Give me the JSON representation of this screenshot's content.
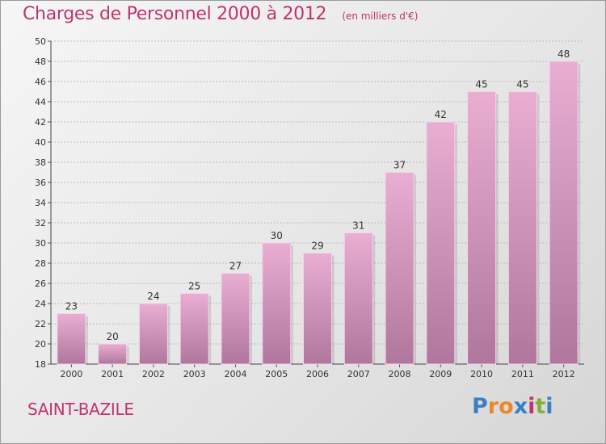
{
  "header": {
    "title": "Charges de Personnel 2000 à 2012",
    "subtitle": "(en milliers d'€)"
  },
  "footer": {
    "commune": "SAINT-BAZILE",
    "logo_text": "Proxiti"
  },
  "colors": {
    "title": "#c0346e",
    "bar_top": "#e9aed2",
    "bar_bottom": "#b0779d",
    "logo_letters": [
      "#3a7fc4",
      "#e8892a",
      "#e8892a",
      "#3a7fc4",
      "#c0346e",
      "#7fb13a",
      "#3a7fc4"
    ]
  },
  "chart_data": {
    "type": "bar",
    "categories": [
      "2000",
      "2001",
      "2002",
      "2003",
      "2004",
      "2005",
      "2006",
      "2007",
      "2008",
      "2009",
      "2010",
      "2011",
      "2012"
    ],
    "values": [
      23,
      20,
      24,
      25,
      27,
      30,
      29,
      31,
      37,
      42,
      45,
      45,
      48
    ],
    "data_labels": [
      "23",
      "20",
      "24",
      "25",
      "27",
      "30",
      "29",
      "31",
      "37",
      "42",
      "45",
      "45",
      "48"
    ],
    "ylim": [
      18,
      50
    ],
    "yticks": [
      18,
      20,
      22,
      24,
      26,
      28,
      30,
      32,
      34,
      36,
      38,
      40,
      42,
      44,
      46,
      48,
      50
    ],
    "grid": true,
    "xlabel": "",
    "ylabel": ""
  }
}
